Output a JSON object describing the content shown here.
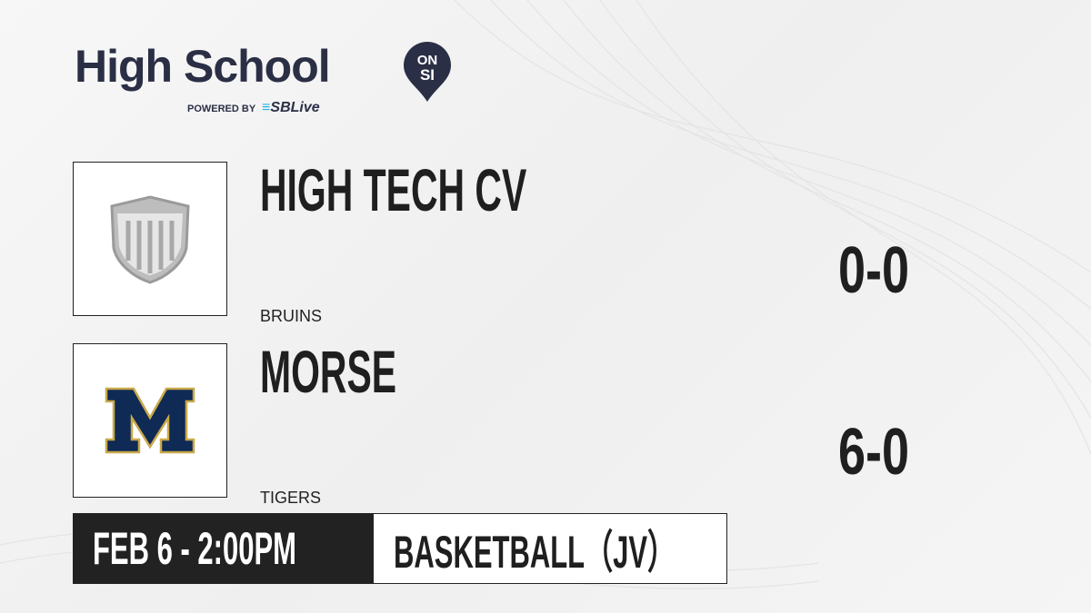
{
  "brand": {
    "title": "High School",
    "badge_top": "ON",
    "badge_bottom": "SI",
    "powered_by": "POWERED BY",
    "partner": "SBLive",
    "colors": {
      "navy": "#2b2f45",
      "partner_accent": "#22b5e8"
    }
  },
  "teams": [
    {
      "name": "HIGH TECH CV",
      "mascot": "BRUINS",
      "record": "0-0",
      "logo_icon": "shield-placeholder-icon"
    },
    {
      "name": "MORSE",
      "mascot": "TIGERS",
      "record": "6-0",
      "logo_icon": "block-m-icon",
      "colors": {
        "primary": "#0f2a55",
        "trim": "#c9a94a"
      }
    }
  ],
  "game": {
    "datetime": "FEB 6 - 2:00PM",
    "sport": "BASKETBALL（JV）"
  }
}
